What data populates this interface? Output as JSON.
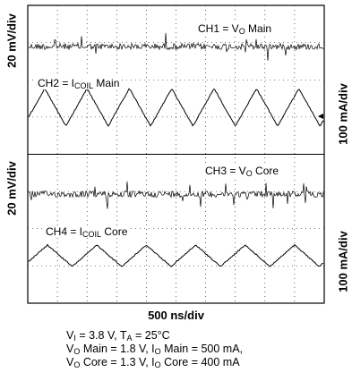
{
  "chart_data": {
    "type": "line",
    "title": "",
    "xlabel": "500  ns/div",
    "time_per_div_ns": 500,
    "divisions_x": 10,
    "divisions_y": 8,
    "grid": true,
    "left_axis_labels": [
      "20 mV/div",
      "20 mV/div"
    ],
    "right_axis_labels": [
      "100 mA/div",
      "100 mA/div"
    ],
    "channels": [
      {
        "prefix": "CH1 = V",
        "sub": "O",
        "suffix": " Main",
        "kind": "ripple",
        "scale": "20 mV/div"
      },
      {
        "prefix": "CH2 = I",
        "sub": "COIL",
        "suffix": " Main",
        "kind": "triangle",
        "scale": "100 mA/div",
        "cycles": 7
      },
      {
        "prefix": "CH3 = V",
        "sub": "O",
        "suffix": " Core",
        "kind": "ripple",
        "scale": "20 mV/div"
      },
      {
        "prefix": "CH4 = I",
        "sub": "COIL",
        "suffix": " Core",
        "kind": "triangle",
        "scale": "100 mA/div",
        "cycles": 6
      }
    ]
  },
  "conditions": {
    "line1": {
      "a": "V",
      "a_sub": "I",
      "b": " = 3.8 V, T",
      "b_sub": "A",
      "c": " = 25°C"
    },
    "line2": {
      "a": "V",
      "a_sub": "O",
      "b": " Main =  1.8 V, I",
      "b_sub": "O",
      "c": " Main = 500 mA,"
    },
    "line3": {
      "a": "V",
      "a_sub": "O",
      "b": " Core = 1.3 V, I",
      "b_sub": "O",
      "c": " Core = 400 mA"
    }
  }
}
